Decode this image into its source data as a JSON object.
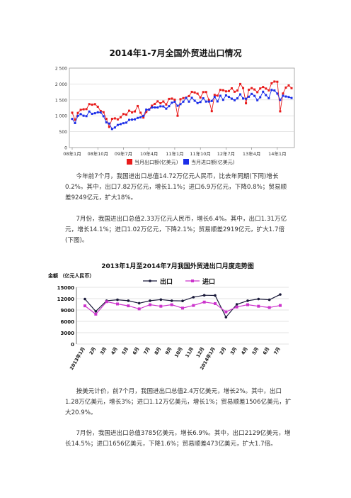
{
  "document": {
    "title": "2014年1-7月全国外贸进出口情况",
    "paragraphs": [
      "今年前7个月，我国进出口总值14.72万亿元人民币，比去年同期(下同)增长0.2%。其中，出口7.82万亿元，增长1.1%；进口6.9万亿元，下降0.8%；贸易顺差9249亿元，扩大18%。",
      "7月份，我国进出口总值2.33万亿元人民币，增长6.4%。其中，出口1.31万亿元，增长14.1%；进口1.02万亿元，下降2.1%；贸易顺差2919亿元，扩大1.7倍(下图)。",
      "按美元计价，前7个月，我国进出口总值2.4万亿美元，增长2%。其中，出口1.28万亿美元，增长3%；进口1.12万亿美元，增长1%；贸易顺差1506亿美元，扩大20.9%。",
      "7月份，我国进出口总值3785亿美元，增长6.9%。其中，出口2129亿美元，增长14.5%；进口1656亿美元，下降1.6%；贸易顺差473亿美元，扩大1.7倍。"
    ]
  },
  "chart_data": [
    {
      "type": "line",
      "title": "",
      "ylim": [
        0,
        2500
      ],
      "yticks": [
        "0",
        "500",
        "1 000",
        "1 500",
        "2 000",
        "2 500"
      ],
      "xticks": [
        "08年1月",
        "08年10月",
        "09年7月",
        "10年4月",
        "11年1月",
        "11年10月",
        "12年7月",
        "13年4月",
        "14年1月"
      ],
      "legend_position": "bottom",
      "grid": true,
      "series": [
        {
          "name": "当月出口额(亿美元)",
          "color": "#e81c1c",
          "values": [
            1097,
            874,
            1089,
            1187,
            1204,
            1210,
            1367,
            1349,
            1365,
            1284,
            1149,
            1111,
            905,
            649,
            903,
            917,
            887,
            954,
            1055,
            1037,
            1159,
            1108,
            1137,
            1307,
            1095,
            945,
            1121,
            1199,
            1317,
            1374,
            1454,
            1393,
            1449,
            1354,
            1531,
            1541,
            1506,
            1000,
            1521,
            1556,
            1571,
            1620,
            1752,
            1733,
            1696,
            1575,
            1745,
            1747,
            1495,
            1145,
            1657,
            1633,
            1814,
            1803,
            1769,
            1779,
            1863,
            1756,
            1794,
            2000,
            1872,
            1393,
            1820,
            1870,
            1827,
            1743,
            1859,
            1906,
            1856,
            1799,
            2022,
            2077,
            2071,
            1140,
            1701,
            1887,
            1954,
            1868
          ]
        },
        {
          "name": "当月进口额(亿美元)",
          "color": "#1c2ee8",
          "values": [
            901,
            770,
            998,
            1053,
            1001,
            988,
            1133,
            1061,
            1080,
            1110,
            1105,
            987,
            792,
            756,
            584,
            631,
            711,
            738,
            766,
            785,
            871,
            880,
            889,
            932,
            953,
            995,
            1194,
            1194,
            1263,
            1263,
            1262,
            1297,
            1294,
            1224,
            1302,
            1410,
            1442,
            1315,
            1365,
            1445,
            1560,
            1445,
            1564,
            1475,
            1399,
            1434,
            1550,
            1447,
            1447,
            1466,
            1597,
            1452,
            1630,
            1502,
            1643,
            1593,
            1539,
            1489,
            1549,
            1673,
            1545,
            1537,
            1600,
            1689,
            1625,
            1489,
            1583,
            1757,
            1650,
            1553,
            1814,
            1795,
            1699,
            1500,
            1630,
            1606,
            1590,
            1559
          ]
        }
      ]
    },
    {
      "type": "line",
      "title": "2013年1月至2014年7月我国外贸进出口月度走势图",
      "ylabel": "金额 （亿元人民币）",
      "ylim": [
        0,
        15000
      ],
      "yticks": [
        "0",
        "3000",
        "6000",
        "9000",
        "12000",
        "15000"
      ],
      "categories": [
        "2013年1月",
        "2月",
        "3月",
        "4月",
        "5月",
        "6月",
        "7月",
        "8月",
        "9月",
        "10月",
        "11月",
        "12月",
        "2014年1月",
        "2月",
        "3月",
        "4月",
        "5月",
        "6月",
        "7月"
      ],
      "legend_position": "top",
      "grid": true,
      "series": [
        {
          "name": "出口",
          "color": "#1a1a3a",
          "values": [
            11900,
            8650,
            11450,
            11700,
            11450,
            10800,
            11450,
            11750,
            11450,
            11400,
            12400,
            12900,
            12850,
            7100,
            10500,
            11450,
            11900,
            11700,
            13100
          ]
        },
        {
          "name": "进口",
          "color": "#cc33cc",
          "values": [
            10100,
            7900,
            11200,
            10600,
            10100,
            9300,
            10400,
            10000,
            10400,
            9500,
            10200,
            11100,
            10700,
            8500,
            9800,
            10400,
            10000,
            9650,
            10200
          ]
        }
      ]
    }
  ]
}
